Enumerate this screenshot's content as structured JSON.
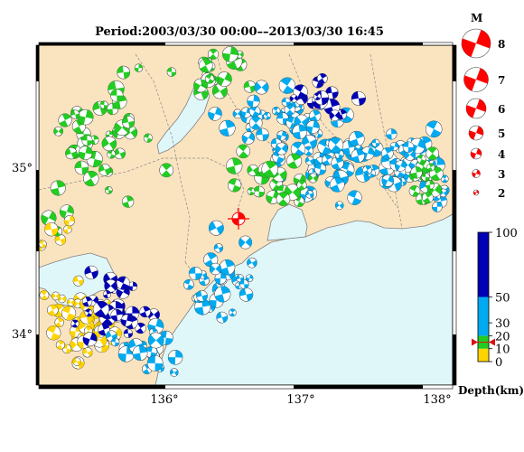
{
  "title": "Period:2003/03/30 00:00––2013/03/30 16:45",
  "map": {
    "lon_labels": [
      "136°",
      "137°",
      "138°"
    ],
    "lat_labels": [
      "35°",
      "34°"
    ],
    "land_color": "#fae4c0",
    "sea_color": "#e0f7fa",
    "lake_color": "#e0f7fa"
  },
  "magnitude_legend": {
    "heading": "M",
    "items": [
      "8",
      "7",
      "6",
      "5",
      "4",
      "3",
      "2"
    ],
    "color": "#ff0000"
  },
  "depth_scale": {
    "title": "Depth(km)",
    "tick_labels": [
      "100",
      "50",
      "30",
      "20",
      "10",
      "0"
    ],
    "bands": [
      {
        "from": 0,
        "to": 10,
        "color": "#ffd400"
      },
      {
        "from": 10,
        "to": 20,
        "color": "#22cc22"
      },
      {
        "from": 20,
        "to": 50,
        "color": "#00aaf0"
      },
      {
        "from": 50,
        "to": 100,
        "color": "#0000b4"
      }
    ],
    "marker_depth": 15,
    "marker_color": "#dd1111"
  },
  "highlight_event": {
    "color": "#ff0000",
    "center_symbol": "+"
  }
}
